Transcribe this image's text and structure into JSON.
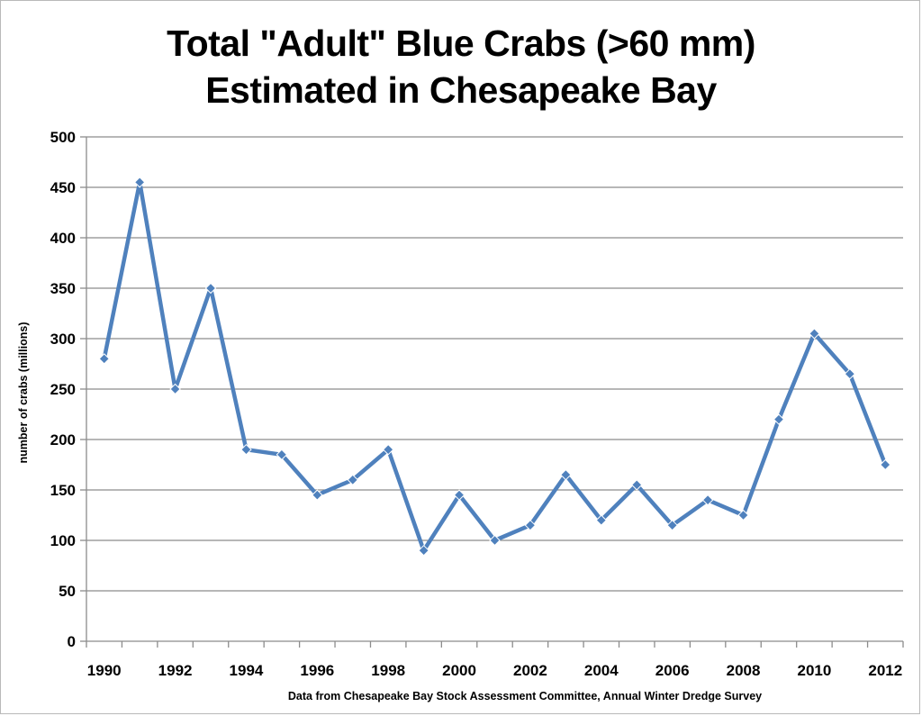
{
  "chart_data": {
    "type": "line",
    "title": [
      "Total \"Adult\" Blue Crabs (>60 mm)",
      "Estimated in Chesapeake Bay"
    ],
    "ylabel": "number of crabs (millions)",
    "xlabel": "Data from Chesapeake Bay Stock Assessment  Committee, Annual Winter Dredge Survey",
    "ylim": [
      0,
      500
    ],
    "yticks": [
      "0",
      "50",
      "100",
      "150",
      "200",
      "250",
      "300",
      "350",
      "400",
      "450",
      "500"
    ],
    "xticks": [
      "1990",
      "1992",
      "1994",
      "1996",
      "1998",
      "2000",
      "2002",
      "2004",
      "2006",
      "2008",
      "2010",
      "2012"
    ],
    "grid": true,
    "series": [
      {
        "color": "#4f81bd",
        "x": [
          1990,
          1991,
          1992,
          1993,
          1994,
          1995,
          1996,
          1997,
          1998,
          1999,
          2000,
          2001,
          2002,
          2003,
          2004,
          2005,
          2006,
          2007,
          2008,
          2009,
          2010,
          2011,
          2012
        ],
        "values": [
          280,
          455,
          250,
          350,
          190,
          185,
          145,
          160,
          190,
          90,
          145,
          100,
          115,
          165,
          120,
          155,
          115,
          140,
          125,
          220,
          305,
          265,
          175
        ]
      }
    ]
  }
}
